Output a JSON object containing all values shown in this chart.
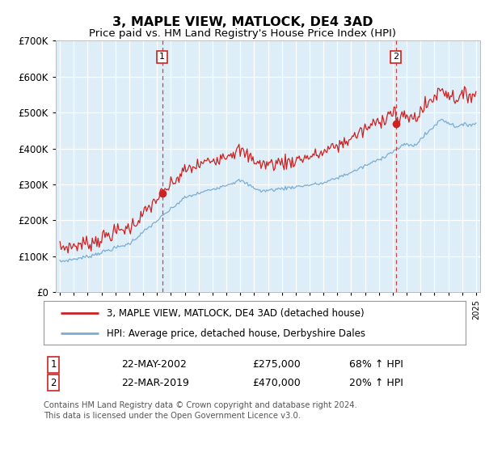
{
  "title": "3, MAPLE VIEW, MATLOCK, DE4 3AD",
  "subtitle": "Price paid vs. HM Land Registry's House Price Index (HPI)",
  "footer": "Contains HM Land Registry data © Crown copyright and database right 2024.\nThis data is licensed under the Open Government Licence v3.0.",
  "legend_line1": "3, MAPLE VIEW, MATLOCK, DE4 3AD (detached house)",
  "legend_line2": "HPI: Average price, detached house, Derbyshire Dales",
  "sale1_date": "22-MAY-2002",
  "sale1_price": "£275,000",
  "sale1_hpi": "68% ↑ HPI",
  "sale1_year": 2002.38,
  "sale1_value": 275000,
  "sale2_date": "22-MAR-2019",
  "sale2_price": "£470,000",
  "sale2_hpi": "20% ↑ HPI",
  "sale2_year": 2019.22,
  "sale2_value": 470000,
  "hpi_color": "#7aadd4",
  "sale_color": "#cc2222",
  "bg_color": "#ddeef8",
  "grid_color": "#ffffff",
  "ylim": [
    0,
    700000
  ],
  "yticks": [
    0,
    100000,
    200000,
    300000,
    400000,
    500000,
    600000,
    700000
  ],
  "xmin": 1994.7,
  "xmax": 2025.3
}
